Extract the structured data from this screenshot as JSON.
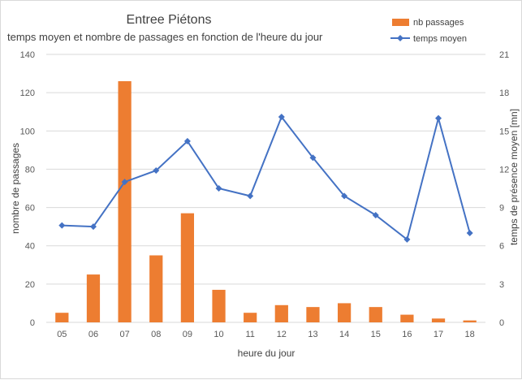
{
  "chart_data": {
    "type": "bar",
    "title": "Entree Piétons",
    "subtitle": "temps moyen et nombre de passages en fonction de l'heure du jour",
    "xlabel": "heure du jour",
    "ylabel": "nombre de passages",
    "y2label": "temps de présence moyen [mn]",
    "categories": [
      "05",
      "06",
      "07",
      "08",
      "09",
      "10",
      "11",
      "12",
      "13",
      "14",
      "15",
      "16",
      "17",
      "18"
    ],
    "ylim": [
      0,
      140
    ],
    "y_ticks": [
      0,
      20,
      40,
      60,
      80,
      100,
      120,
      140
    ],
    "y2lim": [
      0,
      21
    ],
    "y2_ticks": [
      0,
      3,
      6,
      9,
      12,
      15,
      18,
      21
    ],
    "grid": true,
    "legend_position": "top-right",
    "series": [
      {
        "name": "nb passages",
        "type": "bar",
        "axis": "left",
        "color": "#ED7D31",
        "values": [
          5,
          25,
          126,
          35,
          57,
          17,
          5,
          9,
          8,
          10,
          8,
          4,
          2,
          1
        ]
      },
      {
        "name": "temps moyen",
        "type": "line",
        "axis": "right",
        "color": "#4472C4",
        "marker": "diamond",
        "values": [
          7.6,
          7.5,
          11.0,
          11.9,
          14.2,
          10.5,
          9.9,
          16.1,
          12.9,
          9.9,
          8.4,
          6.5,
          16.0,
          7.0
        ]
      }
    ]
  }
}
